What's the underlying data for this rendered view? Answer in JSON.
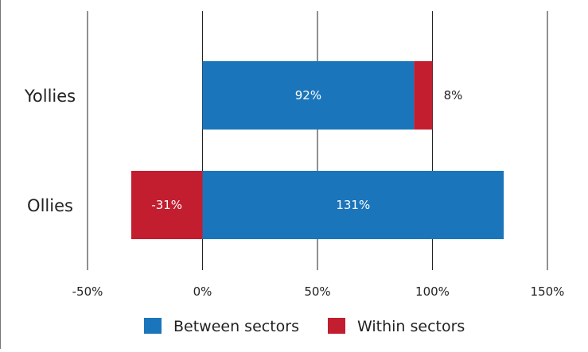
{
  "chart_data": {
    "type": "bar",
    "orientation": "horizontal",
    "stacked": true,
    "categories": [
      "Yollies",
      "Ollies"
    ],
    "series": [
      {
        "name": "Between sectors",
        "color": "#1b75bb",
        "values": [
          92,
          131
        ],
        "labels": [
          "92%",
          "131%"
        ]
      },
      {
        "name": "Within sectors",
        "color": "#c21e2f",
        "values": [
          8,
          -31
        ],
        "labels": [
          "8%",
          "-31%"
        ]
      }
    ],
    "xlim": [
      -50,
      150
    ],
    "xticks": [
      -50,
      0,
      50,
      100,
      150
    ],
    "xtick_labels": [
      "-50%",
      "0%",
      "50%",
      "100%",
      "150%"
    ],
    "grid": "vertical",
    "legend_placement": "bottom-center",
    "title": "",
    "xlabel": "",
    "ylabel": ""
  }
}
